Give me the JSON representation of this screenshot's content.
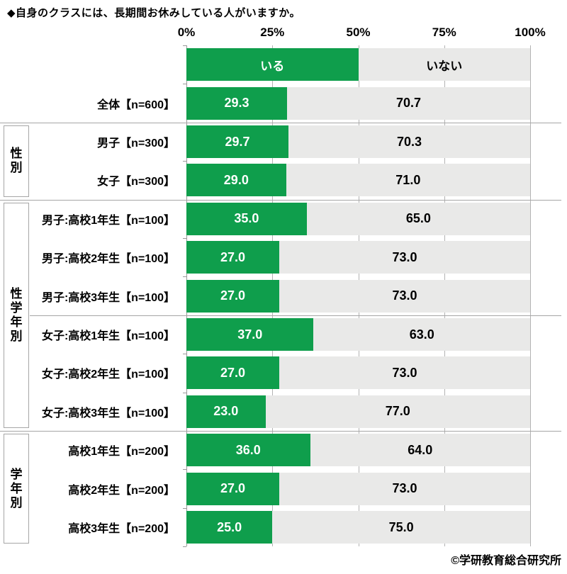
{
  "footer": "©学研教育総合研究所",
  "chart_data": {
    "type": "bar",
    "subtype": "horizontal-stacked-100percent",
    "title": "◆自身のクラスには、長期間お休みしている人がいますか。",
    "legend": [
      "いる",
      "いない"
    ],
    "legend_position": "header-row-inside-plot",
    "colors": {
      "いる": "#0f9e4c",
      "いない": "#e9e9e8",
      "grid": "#b3b3b3",
      "axis": "#999999",
      "separator": "#a6a6a6",
      "label_on_green": "#ffffff",
      "label_on_gray": "#000000"
    },
    "x_axis": {
      "ticks": [
        "0%",
        "25%",
        "50%",
        "75%",
        "100%"
      ],
      "range": [
        0,
        100
      ],
      "grid": true
    },
    "categories": [
      "全体【n=600】",
      "男子【n=300】",
      "女子【n=300】",
      "男子:高校1年生【n=100】",
      "男子:高校2年生【n=100】",
      "男子:高校3年生【n=100】",
      "女子:高校1年生【n=100】",
      "女子:高校2年生【n=100】",
      "女子:高校3年生【n=100】",
      "高校1年生【n=200】",
      "高校2年生【n=200】",
      "高校3年生【n=200】"
    ],
    "series": [
      {
        "name": "いる",
        "values": [
          29.3,
          29.7,
          29.0,
          35.0,
          27.0,
          27.0,
          37.0,
          27.0,
          23.0,
          36.0,
          27.0,
          25.0
        ]
      },
      {
        "name": "いない",
        "values": [
          70.7,
          70.3,
          71.0,
          65.0,
          73.0,
          73.0,
          63.0,
          73.0,
          77.0,
          64.0,
          73.0,
          75.0
        ]
      }
    ],
    "groups": [
      {
        "label": "性別",
        "start": 1,
        "count": 2
      },
      {
        "label": "性学年別",
        "start": 3,
        "count": 6
      },
      {
        "label": "学年別",
        "start": 9,
        "count": 3
      }
    ],
    "separators": [
      {
        "before_row": 1,
        "full_width": true
      },
      {
        "before_row": 3,
        "full_width": true
      },
      {
        "before_row": 6,
        "full_width": false
      },
      {
        "before_row": 9,
        "full_width": true
      }
    ],
    "value_decimals": 1
  }
}
